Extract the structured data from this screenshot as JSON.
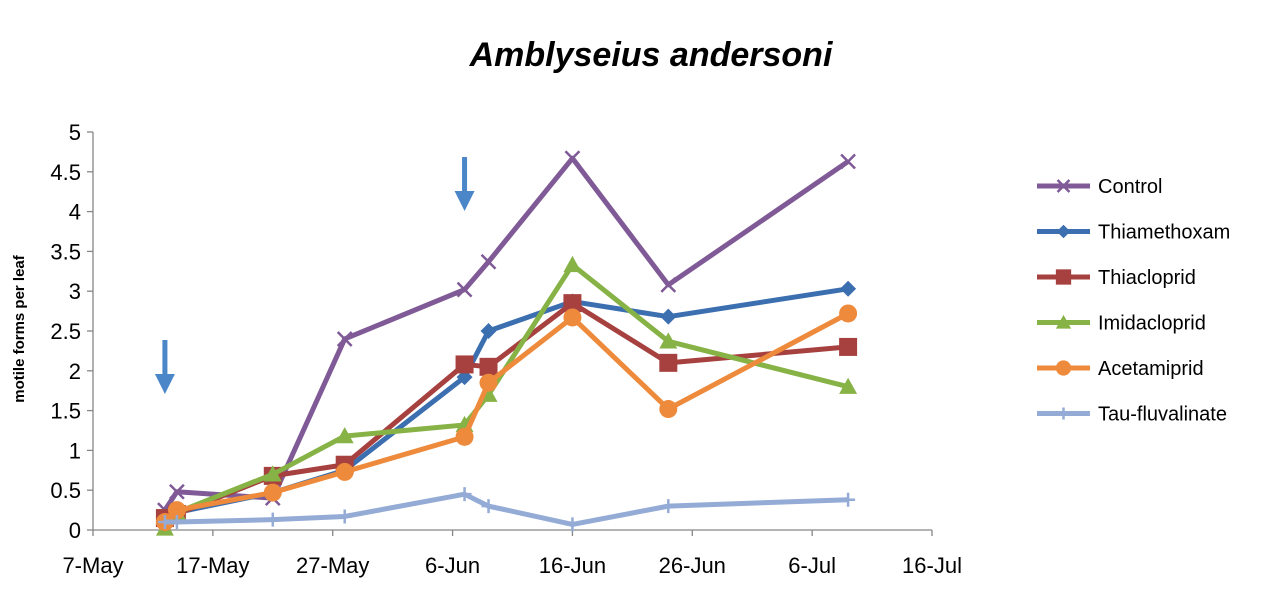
{
  "chart_data": {
    "type": "line",
    "title": "Amblyseius andersoni",
    "ylabel": "motile forms per leaf",
    "xlabel": "",
    "x_axis": {
      "type": "date",
      "min": "2012-05-07",
      "max": "2012-07-16",
      "tick_labels": [
        "7-May",
        "17-May",
        "27-May",
        "6-Jun",
        "16-Jun",
        "26-Jun",
        "6-Jul",
        "16-Jul"
      ]
    },
    "ylim": [
      0,
      5
    ],
    "y_tick_labels": [
      "0",
      "0.5",
      "1",
      "1.5",
      "2",
      "2.5",
      "3",
      "3.5",
      "4",
      "4.5",
      "5"
    ],
    "grid": false,
    "legend_position": "right",
    "annotations": [
      {
        "type": "arrow",
        "x": "2012-05-13",
        "label": ""
      },
      {
        "type": "arrow",
        "x": "2012-06-07",
        "label": ""
      }
    ],
    "series": [
      {
        "name": "Control",
        "color": "#7f5a96",
        "marker": "x",
        "points": [
          [
            "2012-05-13",
            0.25
          ],
          [
            "2012-05-14",
            0.48
          ],
          [
            "2012-05-22",
            0.4
          ],
          [
            "2012-05-28",
            2.4
          ],
          [
            "2012-06-07",
            3.02
          ],
          [
            "2012-06-09",
            3.37
          ],
          [
            "2012-06-16",
            4.67
          ],
          [
            "2012-06-24",
            3.08
          ],
          [
            "2012-07-09",
            4.63
          ]
        ]
      },
      {
        "name": "Thiamethoxam",
        "color": "#3c6fb0",
        "marker": "diamond",
        "points": [
          [
            "2012-05-13",
            0.17
          ],
          [
            "2012-05-14",
            0.22
          ],
          [
            "2012-05-22",
            0.47
          ],
          [
            "2012-05-28",
            0.75
          ],
          [
            "2012-06-07",
            1.92
          ],
          [
            "2012-06-09",
            2.5
          ],
          [
            "2012-06-16",
            2.87
          ],
          [
            "2012-06-24",
            2.68
          ],
          [
            "2012-07-09",
            3.03
          ]
        ]
      },
      {
        "name": "Thiacloprid",
        "color": "#a6413f",
        "marker": "square",
        "points": [
          [
            "2012-05-13",
            0.15
          ],
          [
            "2012-05-14",
            0.2
          ],
          [
            "2012-05-22",
            0.68
          ],
          [
            "2012-05-28",
            0.82
          ],
          [
            "2012-06-07",
            2.08
          ],
          [
            "2012-06-09",
            2.05
          ],
          [
            "2012-06-16",
            2.85
          ],
          [
            "2012-06-24",
            2.1
          ],
          [
            "2012-07-09",
            2.3
          ]
        ]
      },
      {
        "name": "Imidacloprid",
        "color": "#86b246",
        "marker": "triangle",
        "points": [
          [
            "2012-05-13",
            0.02
          ],
          [
            "2012-05-14",
            0.22
          ],
          [
            "2012-05-22",
            0.7
          ],
          [
            "2012-05-28",
            1.18
          ],
          [
            "2012-06-07",
            1.32
          ],
          [
            "2012-06-09",
            1.7
          ],
          [
            "2012-06-16",
            3.33
          ],
          [
            "2012-06-24",
            2.37
          ],
          [
            "2012-07-09",
            1.8
          ]
        ]
      },
      {
        "name": "Acetamiprid",
        "color": "#ee8a3b",
        "marker": "circle",
        "points": [
          [
            "2012-05-13",
            0.1
          ],
          [
            "2012-05-14",
            0.25
          ],
          [
            "2012-05-22",
            0.47
          ],
          [
            "2012-05-28",
            0.73
          ],
          [
            "2012-06-07",
            1.17
          ],
          [
            "2012-06-09",
            1.85
          ],
          [
            "2012-06-16",
            2.67
          ],
          [
            "2012-06-24",
            1.52
          ],
          [
            "2012-07-09",
            2.72
          ]
        ]
      },
      {
        "name": "Tau-fluvalinate",
        "color": "#94abd6",
        "marker": "plus",
        "points": [
          [
            "2012-05-13",
            0.1
          ],
          [
            "2012-05-14",
            0.1
          ],
          [
            "2012-05-22",
            0.13
          ],
          [
            "2012-05-28",
            0.17
          ],
          [
            "2012-06-07",
            0.45
          ],
          [
            "2012-06-09",
            0.3
          ],
          [
            "2012-06-16",
            0.07
          ],
          [
            "2012-06-24",
            0.3
          ],
          [
            "2012-07-09",
            0.38
          ]
        ]
      }
    ]
  }
}
